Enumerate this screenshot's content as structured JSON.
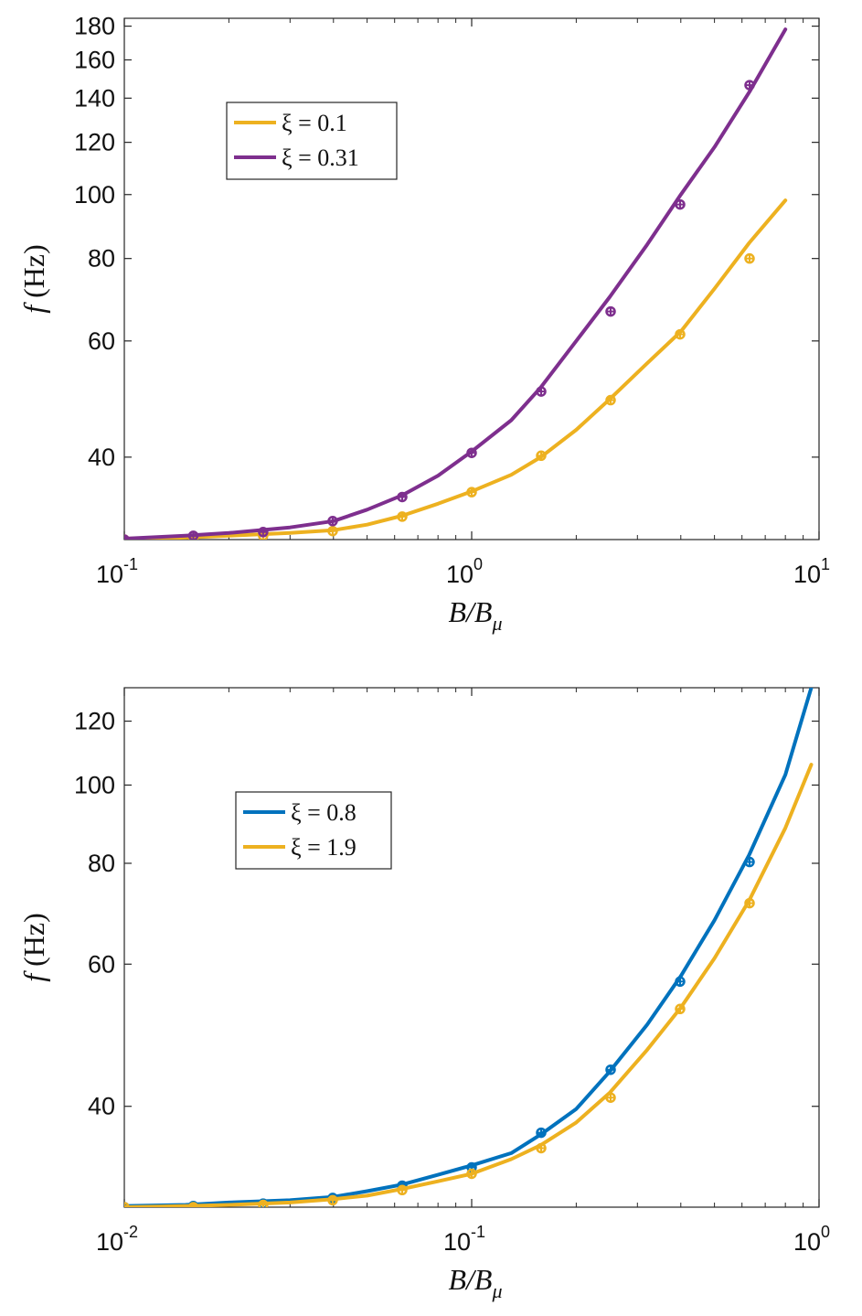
{
  "chart_data": [
    {
      "type": "line",
      "title": "",
      "xlabel": "B/B_μ",
      "ylabel": "f (Hz)",
      "xscale": "log",
      "yscale": "log",
      "xlim": [
        0.1,
        10
      ],
      "ylim": [
        30,
        185
      ],
      "xticks": [
        {
          "base": "10",
          "exp": "-1",
          "value": 0.1
        },
        {
          "base": "10",
          "exp": "0",
          "value": 1
        },
        {
          "base": "10",
          "exp": "1",
          "value": 10
        }
      ],
      "yticks": [
        40,
        60,
        80,
        100,
        120,
        140,
        160,
        180
      ],
      "legend_position": "upper-left",
      "series": [
        {
          "name": "ξ = 0.1",
          "color": "#EDB120",
          "x": [
            0.1,
            0.15,
            0.2,
            0.3,
            0.4,
            0.5,
            0.63,
            0.8,
            1.0,
            1.3,
            1.58,
            2.0,
            2.5,
            3.2,
            4.0,
            5.0,
            6.3,
            8.0
          ],
          "y": [
            30.1,
            30.2,
            30.4,
            30.7,
            31.0,
            31.6,
            32.6,
            34.0,
            35.5,
            37.6,
            40.0,
            44.0,
            49.0,
            55.5,
            62.0,
            72.0,
            84.5,
            98.0
          ],
          "markers_x": [
            0.1,
            0.158,
            0.251,
            0.398,
            0.631,
            1.0,
            1.585,
            2.512,
            3.981,
            6.31
          ],
          "markers_y": [
            30.0,
            30.1,
            30.4,
            30.9,
            32.5,
            35.4,
            40.2,
            48.8,
            61.4,
            80.0
          ]
        },
        {
          "name": "ξ = 0.31",
          "color": "#7E2F8E",
          "x": [
            0.1,
            0.15,
            0.2,
            0.3,
            0.4,
            0.5,
            0.63,
            0.8,
            1.0,
            1.3,
            1.58,
            2.0,
            2.5,
            3.2,
            4.0,
            5.0,
            6.3,
            8.0
          ],
          "y": [
            30.1,
            30.4,
            30.7,
            31.3,
            32.0,
            33.3,
            35.0,
            37.5,
            40.8,
            45.5,
            51.0,
            60.0,
            70.0,
            84.0,
            100.0,
            118.0,
            143.0,
            178.0
          ],
          "markers_x": [
            0.1,
            0.158,
            0.251,
            0.398,
            0.631,
            1.0,
            1.585,
            2.512,
            3.981,
            6.31
          ],
          "markers_y": [
            30.0,
            30.4,
            30.8,
            32.0,
            34.8,
            40.6,
            50.3,
            66.5,
            96.6,
            146.5
          ]
        }
      ]
    },
    {
      "type": "line",
      "title": "",
      "xlabel": "B/B_μ",
      "ylabel": "f (Hz)",
      "xscale": "log",
      "yscale": "log",
      "xlim": [
        0.01,
        1
      ],
      "ylim": [
        30,
        132
      ],
      "xticks": [
        {
          "base": "10",
          "exp": "-2",
          "value": 0.01
        },
        {
          "base": "10",
          "exp": "-1",
          "value": 0.1
        },
        {
          "base": "10",
          "exp": "0",
          "value": 1
        }
      ],
      "yticks": [
        40,
        60,
        80,
        100,
        120
      ],
      "legend_position": "upper-left",
      "series": [
        {
          "name": "ξ = 0.8",
          "color": "#0072BD",
          "x": [
            0.01,
            0.015,
            0.02,
            0.03,
            0.04,
            0.05,
            0.063,
            0.08,
            0.1,
            0.13,
            0.158,
            0.2,
            0.25,
            0.32,
            0.4,
            0.5,
            0.63,
            0.8,
            0.95
          ],
          "y": [
            30.1,
            30.2,
            30.4,
            30.6,
            30.9,
            31.4,
            32.0,
            32.9,
            33.8,
            35.0,
            36.9,
            39.7,
            44.2,
            50.5,
            58.0,
            68.0,
            82.0,
            103.0,
            132.0
          ],
          "markers_x": [
            0.01,
            0.0158,
            0.0251,
            0.0398,
            0.0631,
            0.1,
            0.1585,
            0.2512,
            0.3981,
            0.631
          ],
          "markers_y": [
            30.0,
            30.1,
            30.3,
            30.8,
            31.9,
            33.6,
            37.1,
            44.4,
            57.1,
            80.3
          ]
        },
        {
          "name": "ξ = 1.9",
          "color": "#EDB120",
          "x": [
            0.01,
            0.015,
            0.02,
            0.03,
            0.04,
            0.05,
            0.063,
            0.08,
            0.1,
            0.13,
            0.158,
            0.2,
            0.25,
            0.32,
            0.4,
            0.5,
            0.63,
            0.8,
            0.95
          ],
          "y": [
            30.0,
            30.1,
            30.2,
            30.4,
            30.7,
            31.0,
            31.6,
            32.3,
            33.0,
            34.4,
            35.8,
            38.2,
            41.6,
            47.0,
            53.0,
            61.0,
            72.0,
            88.5,
            106.0
          ],
          "markers_x": [
            0.01,
            0.0158,
            0.0251,
            0.0398,
            0.0631,
            0.1,
            0.1585,
            0.2512,
            0.3981,
            0.631
          ],
          "markers_y": [
            30.0,
            30.0,
            30.2,
            30.6,
            31.5,
            33.0,
            35.5,
            41.0,
            52.8,
            71.4
          ]
        }
      ]
    }
  ]
}
